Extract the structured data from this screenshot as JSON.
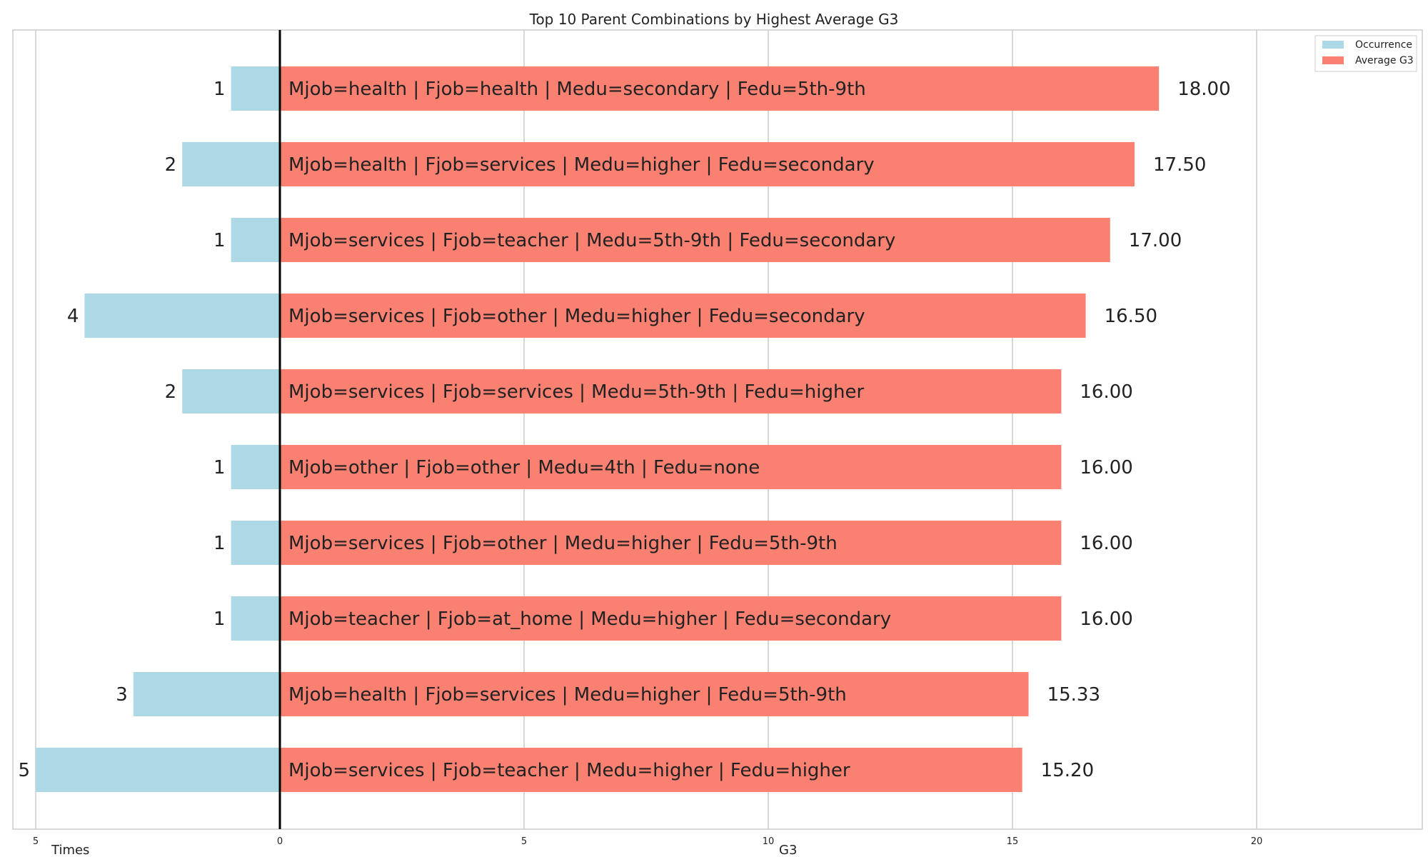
{
  "chart_data": {
    "type": "bar",
    "title": "Top 10 Parent Combinations by Highest Average G3",
    "xlabel_left": "Times",
    "xlabel_right": "G3",
    "xlim": [
      -5,
      23
    ],
    "xticks": [
      {
        "value": -5,
        "label": "5"
      },
      {
        "value": 0,
        "label": "0"
      },
      {
        "value": 5,
        "label": "5"
      },
      {
        "value": 10,
        "label": "10"
      },
      {
        "value": 15,
        "label": "15"
      },
      {
        "value": 20,
        "label": "20"
      }
    ],
    "grid": true,
    "legend_position": "top-right",
    "categories": [
      "Mjob=health | Fjob=health | Medu=secondary | Fedu=5th-9th",
      "Mjob=health | Fjob=services | Medu=higher | Fedu=secondary",
      "Mjob=services | Fjob=teacher | Medu=5th-9th | Fedu=secondary",
      "Mjob=services | Fjob=other | Medu=higher | Fedu=secondary",
      "Mjob=services | Fjob=services | Medu=5th-9th | Fedu=higher",
      "Mjob=other | Fjob=other | Medu=4th | Fedu=none",
      "Mjob=services | Fjob=other | Medu=higher | Fedu=5th-9th",
      "Mjob=teacher | Fjob=at_home | Medu=higher | Fedu=secondary",
      "Mjob=health | Fjob=services | Medu=higher | Fedu=5th-9th",
      "Mjob=services | Fjob=teacher | Medu=higher | Fedu=higher"
    ],
    "series": [
      {
        "name": "Occurrence",
        "color": "#add8e6",
        "values": [
          1,
          2,
          1,
          4,
          2,
          1,
          1,
          1,
          3,
          5
        ],
        "labels": [
          "1",
          "2",
          "1",
          "4",
          "2",
          "1",
          "1",
          "1",
          "3",
          "5"
        ]
      },
      {
        "name": "Average G3",
        "color": "#fa8072",
        "values": [
          18.0,
          17.5,
          17.0,
          16.5,
          16.0,
          16.0,
          16.0,
          16.0,
          15.33,
          15.2
        ],
        "labels": [
          "18.00",
          "17.50",
          "17.00",
          "16.50",
          "16.00",
          "16.00",
          "16.00",
          "16.00",
          "15.33",
          "15.20"
        ]
      }
    ]
  }
}
